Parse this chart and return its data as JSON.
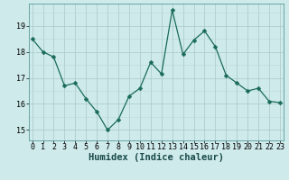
{
  "x": [
    0,
    1,
    2,
    3,
    4,
    5,
    6,
    7,
    8,
    9,
    10,
    11,
    12,
    13,
    14,
    15,
    16,
    17,
    18,
    19,
    20,
    21,
    22,
    23
  ],
  "y": [
    18.5,
    18.0,
    17.8,
    16.7,
    16.8,
    16.2,
    15.7,
    15.0,
    15.4,
    16.3,
    16.6,
    17.6,
    17.15,
    19.6,
    17.9,
    18.45,
    18.8,
    18.2,
    17.1,
    16.8,
    16.5,
    16.6,
    16.1,
    16.05
  ],
  "line_color": "#1a6b5a",
  "marker": "D",
  "marker_size": 2.5,
  "bg_color": "#ceeaea",
  "grid_color_major": "#aac8c8",
  "grid_color_minor": "#bcd8d8",
  "xlabel": "Humidex (Indice chaleur)",
  "xlabel_fontsize": 7.5,
  "tick_fontsize": 6,
  "ylim": [
    14.6,
    19.85
  ],
  "yticks": [
    15,
    16,
    17,
    18,
    19
  ],
  "xlim": [
    -0.3,
    23.3
  ]
}
